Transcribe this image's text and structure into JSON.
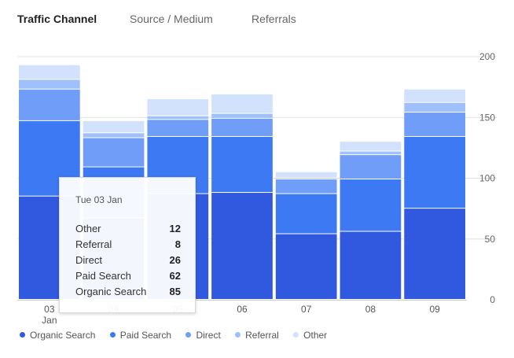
{
  "tabs": [
    {
      "label": "Traffic Channel",
      "active": true
    },
    {
      "label": "Source / Medium",
      "active": false
    },
    {
      "label": "Referrals",
      "active": false
    }
  ],
  "chart_data": {
    "type": "bar",
    "stacked": true,
    "categories": [
      "03",
      "04",
      "05",
      "06",
      "07",
      "08",
      "09"
    ],
    "x_sublabel": "Jan",
    "series": [
      {
        "name": "Organic Search",
        "color": "#3159e0",
        "values": [
          85,
          67,
          87,
          88,
          54,
          56,
          75
        ]
      },
      {
        "name": "Paid Search",
        "color": "#3d79f2",
        "values": [
          62,
          42,
          47,
          46,
          33,
          43,
          59
        ]
      },
      {
        "name": "Direct",
        "color": "#6f9df7",
        "values": [
          26,
          24,
          14,
          15,
          12,
          20,
          20
        ]
      },
      {
        "name": "Referral",
        "color": "#9fc0fb",
        "values": [
          8,
          4,
          3,
          4,
          1,
          3,
          8
        ]
      },
      {
        "name": "Other",
        "color": "#d2e2fd",
        "values": [
          12,
          10,
          14,
          16,
          5,
          8,
          11
        ]
      }
    ],
    "yticks": [
      0,
      50,
      100,
      150,
      200
    ],
    "ylim": [
      0,
      200
    ],
    "grid": true,
    "legend_position": "bottom-left",
    "tooltip": {
      "date": "Tue 03 Jan",
      "rows": [
        {
          "name": "Other",
          "value": "12"
        },
        {
          "name": "Referral",
          "value": "8"
        },
        {
          "name": "Direct",
          "value": "26"
        },
        {
          "name": "Paid Search",
          "value": "62"
        },
        {
          "name": "Organic Search",
          "value": "85"
        }
      ]
    }
  }
}
